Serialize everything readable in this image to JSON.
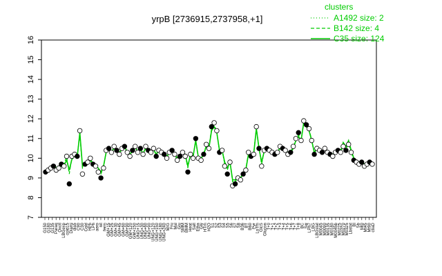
{
  "chart_data": {
    "type": "line",
    "title": "yrpB [2736915,2737958,+1]",
    "xlabel": "",
    "ylabel": "",
    "ylim": [
      7,
      16
    ],
    "yticks": [
      7,
      8,
      9,
      10,
      11,
      12,
      13,
      14,
      15,
      16
    ],
    "grid": false,
    "legend": {
      "title": "clusters",
      "placement": "top-right",
      "entries": [
        {
          "label": "A1492 size: 2",
          "style": "dotted"
        },
        {
          "label": "B142 size: 4",
          "style": "dashed"
        },
        {
          "label": "C35 size: 124",
          "style": "solid"
        }
      ]
    },
    "colors": {
      "series": "#00cc00",
      "points": "#000000",
      "frame": "#000000"
    },
    "x_labels": [
      "G150",
      "G180",
      "G135",
      "Paraq",
      "Oxctl",
      "LBGexp",
      "cold15",
      "Diami",
      "dia5",
      "C90",
      "C30",
      "Cold",
      "HPh",
      "LPh",
      "aero",
      "nit",
      "ferm",
      "GM+15",
      "GM+25",
      "GM+30",
      "GM+45",
      "GM+60",
      "GM+90",
      "GM+120",
      "GM+150",
      "UNG+15",
      "UNG+30",
      "UNG+60",
      "UNG+90",
      "UNG+120",
      "UNG+150",
      "UNG+180",
      "UNG+240",
      "M/G",
      "Fru",
      "Mal",
      "Glu",
      "SMM",
      "BMM",
      "Heat",
      "Salt",
      "Etha",
      "Gly",
      "HTm",
      "H2O",
      "S1",
      "S2",
      "S3",
      "S4",
      "S5",
      "S6",
      "S7",
      "S8",
      "B36",
      "BT",
      "B60",
      "Pyr",
      "LoTm",
      "GlcS",
      "Glucon",
      "T+0",
      "T+1",
      "T+2",
      "T+3",
      "T+4",
      "T+5",
      "T+6",
      "T+7",
      "T+8",
      "BC",
      "Sw",
      "LPh7",
      "LBG",
      "LBGstat",
      "M0045",
      "M0090",
      "M0135",
      "M0180",
      "M0045b",
      "M0225",
      "M0270",
      "M0325",
      "Lbstat",
      "BI",
      "Sb",
      "Mt0",
      "Mt45",
      "Mt90",
      "ctiaD"
    ],
    "points": [
      9.3,
      9.4,
      9.5,
      9.6,
      9.4,
      9.5,
      9.7,
      9.6,
      10.1,
      8.7,
      10.1,
      10.2,
      10.1,
      11.4,
      9.2,
      9.7,
      9.8,
      10.0,
      9.7,
      9.6,
      9.3,
      9.0,
      9.5,
      10.4,
      10.5,
      10.3,
      10.6,
      10.4,
      10.2,
      10.5,
      10.6,
      10.3,
      10.1,
      10.4,
      10.6,
      10.3,
      10.5,
      10.2,
      10.6,
      10.4,
      10.3,
      10.5,
      10.1,
      10.4,
      10.3,
      10.2,
      10.0,
      10.3,
      10.4,
      10.2,
      9.9,
      10.1,
      10.3,
      10.1,
      9.3,
      10.2,
      10.0,
      11.0,
      10.0,
      9.9,
      10.2,
      10.7,
      10.5,
      11.6,
      11.8,
      11.4,
      10.3,
      10.4,
      9.6,
      9.2,
      9.8,
      8.6,
      8.7,
      9.0,
      8.9,
      9.2,
      9.4,
      10.3,
      10.1,
      10.2,
      11.6,
      10.5,
      9.6,
      10.4,
      10.5,
      10.4,
      10.3,
      10.2,
      10.3,
      10.6,
      10.5,
      10.4,
      10.2,
      10.3,
      10.6,
      11.0,
      11.3,
      10.9,
      11.9,
      11.7,
      11.5,
      10.9,
      10.2,
      10.5,
      10.4,
      10.3,
      10.5,
      10.3,
      10.2,
      10.1,
      10.3,
      10.4,
      10.3,
      10.6,
      10.4,
      10.7,
      10.3,
      9.9,
      9.8,
      9.7,
      9.8,
      9.6,
      9.7,
      9.8,
      9.7
    ],
    "series": [
      {
        "name": "C35 size: 124",
        "style": "solid",
        "values": [
          9.3,
          9.35,
          9.45,
          9.55,
          9.5,
          9.55,
          9.6,
          9.65,
          9.9,
          9.4,
          9.95,
          10.1,
          10.05,
          11.3,
          9.6,
          9.65,
          9.8,
          9.9,
          9.7,
          9.6,
          9.5,
          9.3,
          9.6,
          10.3,
          10.4,
          10.35,
          10.5,
          10.4,
          10.3,
          10.45,
          10.55,
          10.35,
          10.2,
          10.4,
          10.55,
          10.35,
          10.45,
          10.25,
          10.5,
          10.4,
          10.35,
          10.45,
          10.2,
          10.4,
          10.35,
          10.25,
          10.1,
          10.3,
          10.35,
          10.25,
          10.0,
          10.1,
          10.3,
          10.2,
          9.6,
          10.2,
          10.1,
          10.9,
          10.05,
          10.0,
          10.2,
          10.6,
          10.5,
          11.4,
          11.6,
          11.3,
          10.4,
          10.4,
          9.8,
          9.5,
          9.8,
          8.9,
          8.9,
          9.1,
          9.0,
          9.2,
          9.4,
          10.2,
          10.1,
          10.2,
          11.5,
          10.5,
          9.8,
          10.35,
          10.45,
          10.4,
          10.35,
          10.25,
          10.3,
          10.5,
          10.5,
          10.4,
          10.3,
          10.3,
          10.5,
          10.9,
          11.1,
          10.9,
          11.8,
          11.6,
          11.4,
          10.9,
          10.3,
          10.5,
          10.4,
          10.35,
          10.5,
          10.35,
          10.25,
          10.2,
          10.3,
          10.4,
          10.35,
          10.8,
          10.6,
          10.9,
          10.4,
          10.0,
          9.9,
          9.8,
          9.85,
          9.7,
          9.75,
          9.8,
          9.75
        ]
      },
      {
        "name": "B142 size: 4",
        "style": "dashed",
        "values": [
          9.35,
          9.5,
          9.6,
          9.7,
          9.55,
          9.6,
          9.75,
          9.7,
          10.1,
          9.2,
          10.05,
          10.2,
          10.1,
          11.2,
          9.5,
          9.7,
          9.85,
          9.95,
          9.75,
          9.65,
          9.45,
          9.2,
          9.55,
          10.35,
          10.45,
          10.3,
          10.55,
          10.45,
          10.25,
          10.5,
          10.6,
          10.3,
          10.15,
          10.45,
          10.6,
          10.3,
          10.5,
          10.2,
          10.55,
          10.45,
          10.3,
          10.5,
          10.15,
          10.45,
          10.3,
          10.2,
          10.05,
          10.35,
          10.4,
          10.2,
          9.95,
          10.15,
          10.35,
          10.15,
          9.5,
          10.25,
          10.05,
          10.95,
          10.0,
          9.95,
          10.25,
          10.65,
          10.55,
          11.5,
          11.7,
          11.35,
          10.35,
          10.45,
          9.7,
          9.4,
          9.85,
          8.8,
          8.8,
          9.05,
          8.95,
          9.25,
          9.45,
          10.25,
          10.15,
          10.25,
          11.55,
          10.55,
          9.7,
          10.4,
          10.5,
          10.45,
          10.3,
          10.2,
          10.35,
          10.55,
          10.5,
          10.45,
          10.25,
          10.35,
          10.55,
          10.95,
          11.2,
          10.95,
          11.85,
          11.65,
          11.45,
          10.95,
          10.25,
          10.55,
          10.45,
          10.3,
          10.55,
          10.3,
          10.2,
          10.15,
          10.35,
          10.45,
          10.3,
          10.7,
          10.5,
          10.8,
          10.35,
          9.95,
          9.85,
          9.75,
          9.8,
          9.65,
          9.7,
          9.85,
          9.7
        ]
      },
      {
        "name": "A1492 size: 2",
        "style": "dotted",
        "values": [
          9.4,
          9.45,
          9.55,
          9.65,
          9.45,
          9.6,
          9.7,
          9.7,
          10.0,
          9.3,
          10.0,
          10.15,
          10.1,
          11.25,
          9.55,
          9.7,
          9.8,
          9.95,
          9.75,
          9.6,
          9.4,
          9.25,
          9.55,
          10.3,
          10.4,
          10.25,
          10.5,
          10.4,
          10.2,
          10.45,
          10.55,
          10.25,
          10.1,
          10.4,
          10.55,
          10.25,
          10.45,
          10.15,
          10.5,
          10.4,
          10.25,
          10.45,
          10.1,
          10.4,
          10.25,
          10.15,
          10.0,
          10.3,
          10.35,
          10.15,
          9.9,
          10.1,
          10.3,
          10.1,
          9.55,
          10.2,
          10.0,
          10.9,
          9.95,
          9.9,
          10.2,
          10.6,
          10.5,
          11.45,
          11.65,
          11.3,
          10.3,
          10.4,
          9.65,
          9.45,
          9.8,
          8.85,
          8.85,
          9.1,
          9.0,
          9.3,
          9.5,
          10.2,
          10.1,
          10.2,
          11.5,
          10.5,
          9.65,
          10.35,
          10.45,
          10.4,
          10.25,
          10.15,
          10.3,
          10.5,
          10.45,
          10.4,
          10.2,
          10.3,
          10.5,
          10.9,
          11.15,
          10.9,
          11.8,
          11.6,
          11.4,
          10.9,
          10.2,
          10.5,
          10.4,
          10.25,
          10.5,
          10.25,
          10.15,
          10.1,
          10.3,
          10.4,
          10.25,
          10.65,
          10.45,
          10.75,
          10.3,
          9.9,
          9.8,
          9.7,
          9.75,
          9.6,
          9.65,
          9.8,
          9.65
        ]
      }
    ]
  }
}
